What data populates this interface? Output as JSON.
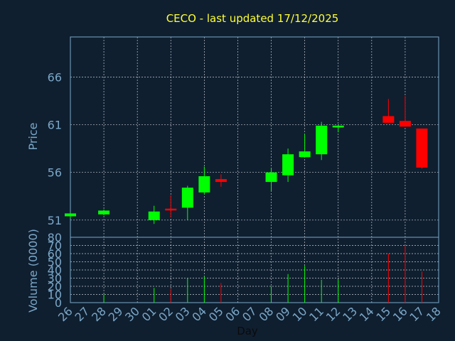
{
  "chart_data": {
    "type": "candlestick",
    "title": "CECO - last updated 17/12/2025",
    "xlabel": "Day",
    "ylabel_price": "Price",
    "ylabel_volume": "Volume (0000)",
    "x_ticks": [
      "26",
      "27",
      "28",
      "29",
      "30",
      "01",
      "02",
      "03",
      "04",
      "05",
      "06",
      "07",
      "08",
      "09",
      "10",
      "11",
      "12",
      "13",
      "14",
      "15",
      "16",
      "17",
      "18"
    ],
    "price_ticks": [
      51,
      56,
      61,
      66
    ],
    "price_range": [
      49.2,
      70.2
    ],
    "volume_ticks": [
      0,
      10,
      20,
      30,
      40,
      50,
      60,
      70,
      80
    ],
    "volume_range": [
      0,
      80
    ],
    "grid": true,
    "colors": {
      "background": "#0f1f30",
      "title": "#ffff33",
      "axis_text": "#7ba7c7",
      "grid": "#ffffff",
      "up": "#00ff00",
      "down": "#ff0000"
    },
    "candles": [
      {
        "day": "26",
        "open": 51.4,
        "high": 51.8,
        "low": 51.2,
        "close": 51.7,
        "volume": 0
      },
      {
        "day": "28",
        "open": 51.6,
        "high": 52.1,
        "low": 51.5,
        "close": 52.0,
        "volume": 10
      },
      {
        "day": "01",
        "open": 51.0,
        "high": 52.5,
        "low": 50.6,
        "close": 51.9,
        "volume": 18
      },
      {
        "day": "02",
        "open": 52.2,
        "high": 53.6,
        "low": 51.3,
        "close": 52.1,
        "volume": 17
      },
      {
        "day": "03",
        "open": 52.3,
        "high": 54.6,
        "low": 51.0,
        "close": 54.4,
        "volume": 30
      },
      {
        "day": "04",
        "open": 53.9,
        "high": 56.6,
        "low": 53.7,
        "close": 55.6,
        "volume": 32
      },
      {
        "day": "05",
        "open": 55.3,
        "high": 55.8,
        "low": 54.5,
        "close": 55.0,
        "volume": 24
      },
      {
        "day": "08",
        "open": 55.0,
        "high": 56.5,
        "low": 54.1,
        "close": 56.0,
        "volume": 20
      },
      {
        "day": "09",
        "open": 55.7,
        "high": 58.5,
        "low": 55.0,
        "close": 57.9,
        "volume": 35
      },
      {
        "day": "10",
        "open": 57.6,
        "high": 60.0,
        "low": 57.6,
        "close": 58.2,
        "volume": 45
      },
      {
        "day": "11",
        "open": 57.9,
        "high": 61.3,
        "low": 57.3,
        "close": 60.9,
        "volume": 28
      },
      {
        "day": "12",
        "open": 60.8,
        "high": 61.0,
        "low": 60.2,
        "close": 60.9,
        "volume": 28
      },
      {
        "day": "15",
        "open": 61.9,
        "high": 63.7,
        "low": 61.2,
        "close": 61.2,
        "volume": 60
      },
      {
        "day": "16",
        "open": 61.4,
        "high": 64.0,
        "low": 60.8,
        "close": 60.8,
        "volume": 70
      },
      {
        "day": "17",
        "open": 60.6,
        "high": 60.6,
        "low": 56.4,
        "close": 56.5,
        "volume": 38
      }
    ]
  }
}
